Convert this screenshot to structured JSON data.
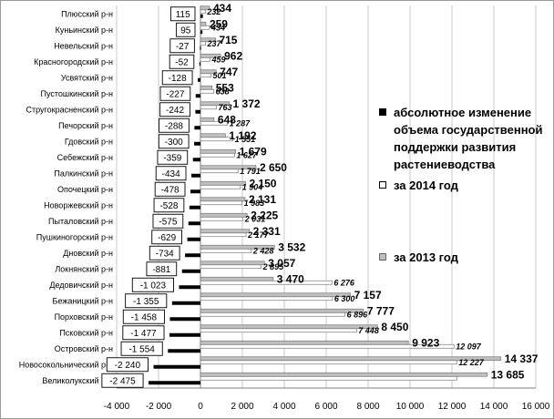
{
  "chart_data": {
    "type": "bar",
    "orientation": "horizontal",
    "categories": [
      "Плюсский р-н",
      "Куньинский р-н",
      "Невельский р-н",
      "Красногородский р-н",
      "Усвятский р-н",
      "Пустошкинский р-н",
      "Стругокрасненский р-н",
      "Печорский р-н",
      "Гдовский р-н",
      "Себежский р-н",
      "Палкинский р-н",
      "Опочецкий р-н",
      "Новоржевский р-н",
      "Пыталовский р-н",
      "Пушкиногорский р-н",
      "Дновский р-н",
      "Локнянский р-н",
      "Дедовичский р-н",
      "Бежаницкий р-н",
      "Порховский р-н",
      "Псковский р-н",
      "Островский р-н",
      "Новосокольнический р-н",
      "Великолукский р-н"
    ],
    "series": [
      {
        "name": "абсолютное изменение объема государственной поддержки развития растениеводства",
        "color": "#000000",
        "values": [
          115,
          95,
          -27,
          -52,
          -128,
          -227,
          -242,
          -288,
          -300,
          -359,
          -434,
          -478,
          -528,
          -575,
          -629,
          -734,
          -881,
          -1023,
          -1355,
          -1458,
          -1477,
          -1554,
          -2240,
          -2475
        ],
        "labels": [
          "115",
          "95",
          "-27",
          "-52",
          "-128",
          "-227",
          "-242",
          "-288",
          "-300",
          "-359",
          "-434",
          "-478",
          "-528",
          "-575",
          "-629",
          "-734",
          "-881",
          "-1 023",
          "-1 355",
          "-1 458",
          "-1 477",
          "-1 554",
          "-2 240",
          "-2 475"
        ]
      },
      {
        "name": "за 2014 год",
        "color": "#ffffff",
        "values": [
          232,
          434,
          237,
          459,
          501,
          638,
          763,
          1287,
          1551,
          1627,
          1791,
          1904,
          1983,
          2031,
          2177,
          2428,
          2895,
          6276,
          6300,
          6896,
          7448,
          12097,
          12227,
          12227
        ],
        "labels": [
          "232",
          "434",
          "237",
          "459",
          "501",
          "638",
          "763",
          "1 287",
          "1 551",
          "1 627",
          "1 791",
          "1 904",
          "1 983",
          "2 031",
          "2 177",
          "2 428",
          "2 895",
          "6 276",
          "6 300",
          "6 896",
          "7 448",
          "12 097",
          "12 227",
          ""
        ]
      },
      {
        "name": "за 2013 год",
        "color": "#bfbfbf",
        "values": [
          434,
          259,
          715,
          962,
          747,
          553,
          1372,
          648,
          1192,
          1679,
          2650,
          2150,
          2131,
          2225,
          2331,
          3532,
          3057,
          3470,
          7157,
          7777,
          8450,
          9923,
          14337,
          13685
        ],
        "labels": [
          "434",
          "259",
          "715",
          "962",
          "747",
          "553",
          "1 372",
          "648",
          "1 192",
          "1 679",
          "2 650",
          "2 150",
          "2 131",
          "2 225",
          "2 331",
          "3 532",
          "3 057",
          "3 470",
          "7 157",
          "7 777",
          "8 450",
          "9 923",
          "14 337",
          "13 685"
        ]
      }
    ],
    "xlim": [
      -4000,
      16000
    ],
    "xticks": [
      -4000,
      -2000,
      0,
      2000,
      4000,
      6000,
      8000,
      10000,
      12000,
      14000,
      16000
    ],
    "xtick_labels": [
      "-4 000",
      "-2 000",
      "0",
      "2 000",
      "4 000",
      "6 000",
      "8 000",
      "10 000",
      "12 000",
      "14 000",
      "16 000"
    ],
    "grid": "vertical",
    "legend_position": "right"
  }
}
